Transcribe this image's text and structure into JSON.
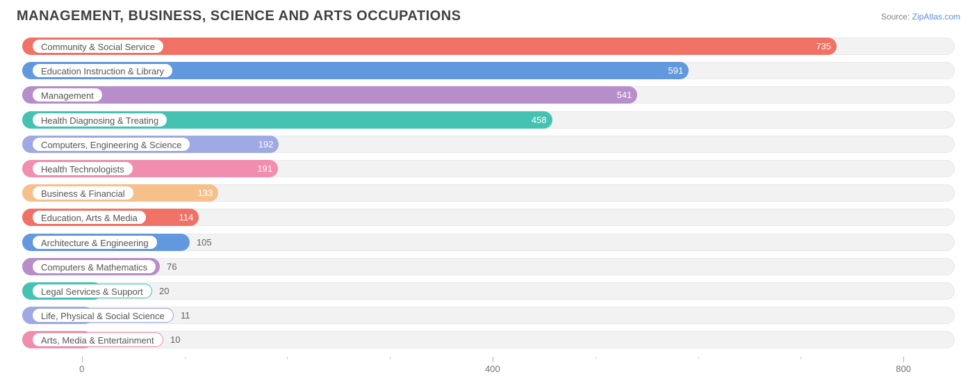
{
  "title": "MANAGEMENT, BUSINESS, SCIENCE AND ARTS OCCUPATIONS",
  "source_label": "Source: ",
  "source_name": "ZipAtlas.com",
  "chart": {
    "type": "bar-horizontal",
    "xmin": -58,
    "xmax": 850,
    "background_color": "#ffffff",
    "track_color": "#f2f2f2",
    "track_border": "#e8e8e8",
    "label_pill_bg": "#ffffff",
    "tick_color": "#b0b0b0",
    "value_label_fontsize": 13,
    "category_label_fontsize": 13,
    "title_fontsize": 20,
    "title_color": "#404040",
    "major_ticks": [
      0,
      400,
      800
    ],
    "minor_tick_step": 100,
    "bars": [
      {
        "label": "Community & Social Service",
        "value": 735,
        "color": "#ef6a5e"
      },
      {
        "label": "Education Instruction & Library",
        "value": 591,
        "color": "#5a94dc"
      },
      {
        "label": "Management",
        "value": 541,
        "color": "#b387c7"
      },
      {
        "label": "Health Diagnosing & Treating",
        "value": 458,
        "color": "#3bbfad"
      },
      {
        "label": "Computers, Engineering & Science",
        "value": 192,
        "color": "#9aa4e2"
      },
      {
        "label": "Health Technologists",
        "value": 191,
        "color": "#f087ab"
      },
      {
        "label": "Business & Financial",
        "value": 133,
        "color": "#f6bd85"
      },
      {
        "label": "Education, Arts & Media",
        "value": 114,
        "color": "#ef6a5e"
      },
      {
        "label": "Architecture & Engineering",
        "value": 105,
        "color": "#5a94dc"
      },
      {
        "label": "Computers & Mathematics",
        "value": 76,
        "color": "#b387c7"
      },
      {
        "label": "Legal Services & Support",
        "value": 20,
        "color": "#3bbfad"
      },
      {
        "label": "Life, Physical & Social Science",
        "value": 11,
        "color": "#9aa4e2"
      },
      {
        "label": "Arts, Media & Entertainment",
        "value": 10,
        "color": "#f087ab"
      }
    ]
  }
}
